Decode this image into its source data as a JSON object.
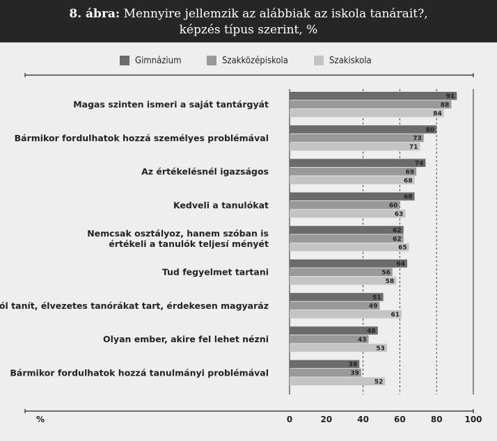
{
  "header": {
    "title_prefix": "8. ábra:",
    "title_line1": "Mennyire jellemzik az alábbiak az iskola tanárait?,",
    "title_line2": "képzés típus szerint, %"
  },
  "colors": {
    "Gimnázium": "#6b6b6b",
    "Szakközépiskola": "#999999",
    "Szakiskola": "#c4c4c4"
  },
  "chart_data": {
    "type": "bar",
    "orientation": "horizontal",
    "unit_label": "%",
    "xlim": [
      0,
      100
    ],
    "ticks": [
      0,
      20,
      40,
      60,
      80,
      100
    ],
    "grid": "dashed vertical at 40, 60, 80",
    "legend_position": "top",
    "categories": [
      [
        "Magas szinten ismeri a saját tantárgyát"
      ],
      [
        "Bármikor fordulhatok hozzá személyes problémával"
      ],
      [
        "Az értékelésnél igazságos"
      ],
      [
        "Kedveli a tanulókat"
      ],
      [
        "Nemcsak osztályoz, hanem szóban is",
        "értékeli a tanulók teljesí ményét"
      ],
      [
        "Tud fegyelmet tartani"
      ],
      [
        "Jól tanít, élvezetes tanórákat tart, érdekesen magyaráz"
      ],
      [
        "Olyan ember, akire fel lehet nézni"
      ],
      [
        "Bármikor fordulhatok hozzá tanulmányi problémával"
      ]
    ],
    "series": [
      {
        "name": "Gimnázium",
        "values": [
          91,
          80,
          74,
          68,
          62,
          64,
          51,
          48,
          38
        ]
      },
      {
        "name": "Szakközépiskola",
        "values": [
          88,
          73,
          69,
          60,
          62,
          56,
          49,
          43,
          39
        ]
      },
      {
        "name": "Szakiskola",
        "values": [
          84,
          71,
          68,
          63,
          65,
          58,
          61,
          53,
          52
        ]
      }
    ]
  }
}
